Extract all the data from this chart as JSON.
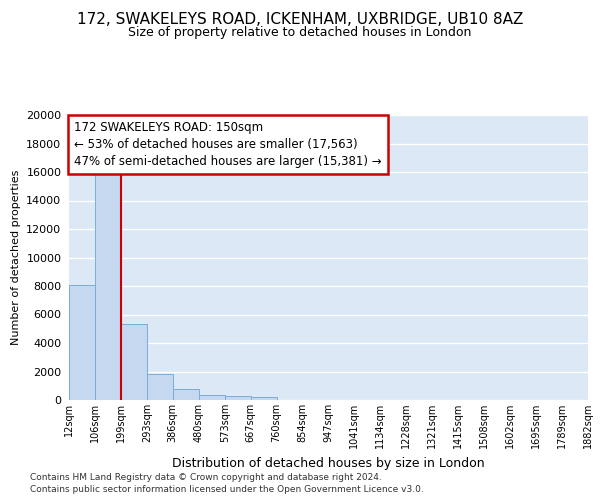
{
  "title": "172, SWAKELEYS ROAD, ICKENHAM, UXBRIDGE, UB10 8AZ",
  "subtitle": "Size of property relative to detached houses in London",
  "xlabel": "Distribution of detached houses by size in London",
  "ylabel": "Number of detached properties",
  "bar_color": "#c5d8ef",
  "bar_edge_color": "#7aadda",
  "bar_values": [
    8100,
    16500,
    5300,
    1850,
    750,
    350,
    270,
    200,
    0,
    0,
    0,
    0,
    0,
    0,
    0,
    0,
    0,
    0,
    0,
    0
  ],
  "categories": [
    "12sqm",
    "106sqm",
    "199sqm",
    "293sqm",
    "386sqm",
    "480sqm",
    "573sqm",
    "667sqm",
    "760sqm",
    "854sqm",
    "947sqm",
    "1041sqm",
    "1134sqm",
    "1228sqm",
    "1321sqm",
    "1415sqm",
    "1508sqm",
    "1602sqm",
    "1695sqm",
    "1789sqm",
    "1882sqm"
  ],
  "red_line_x": 1.5,
  "annotation_text": "172 SWAKELEYS ROAD: 150sqm\n← 53% of detached houses are smaller (17,563)\n47% of semi-detached houses are larger (15,381) →",
  "annotation_box_color": "#ffffff",
  "annotation_box_edge_color": "#cc0000",
  "ylim": [
    0,
    20000
  ],
  "yticks": [
    0,
    2000,
    4000,
    6000,
    8000,
    10000,
    12000,
    14000,
    16000,
    18000,
    20000
  ],
  "footnote1": "Contains HM Land Registry data © Crown copyright and database right 2024.",
  "footnote2": "Contains public sector information licensed under the Open Government Licence v3.0.",
  "fig_bg_color": "#ffffff",
  "plot_bg_color": "#dce8f5",
  "grid_color": "#ffffff",
  "title_fontsize": 11,
  "subtitle_fontsize": 9,
  "ylabel_fontsize": 8,
  "xlabel_fontsize": 9,
  "ytick_fontsize": 8,
  "xtick_fontsize": 7,
  "footnote_fontsize": 6.5,
  "annot_fontsize": 8.5
}
